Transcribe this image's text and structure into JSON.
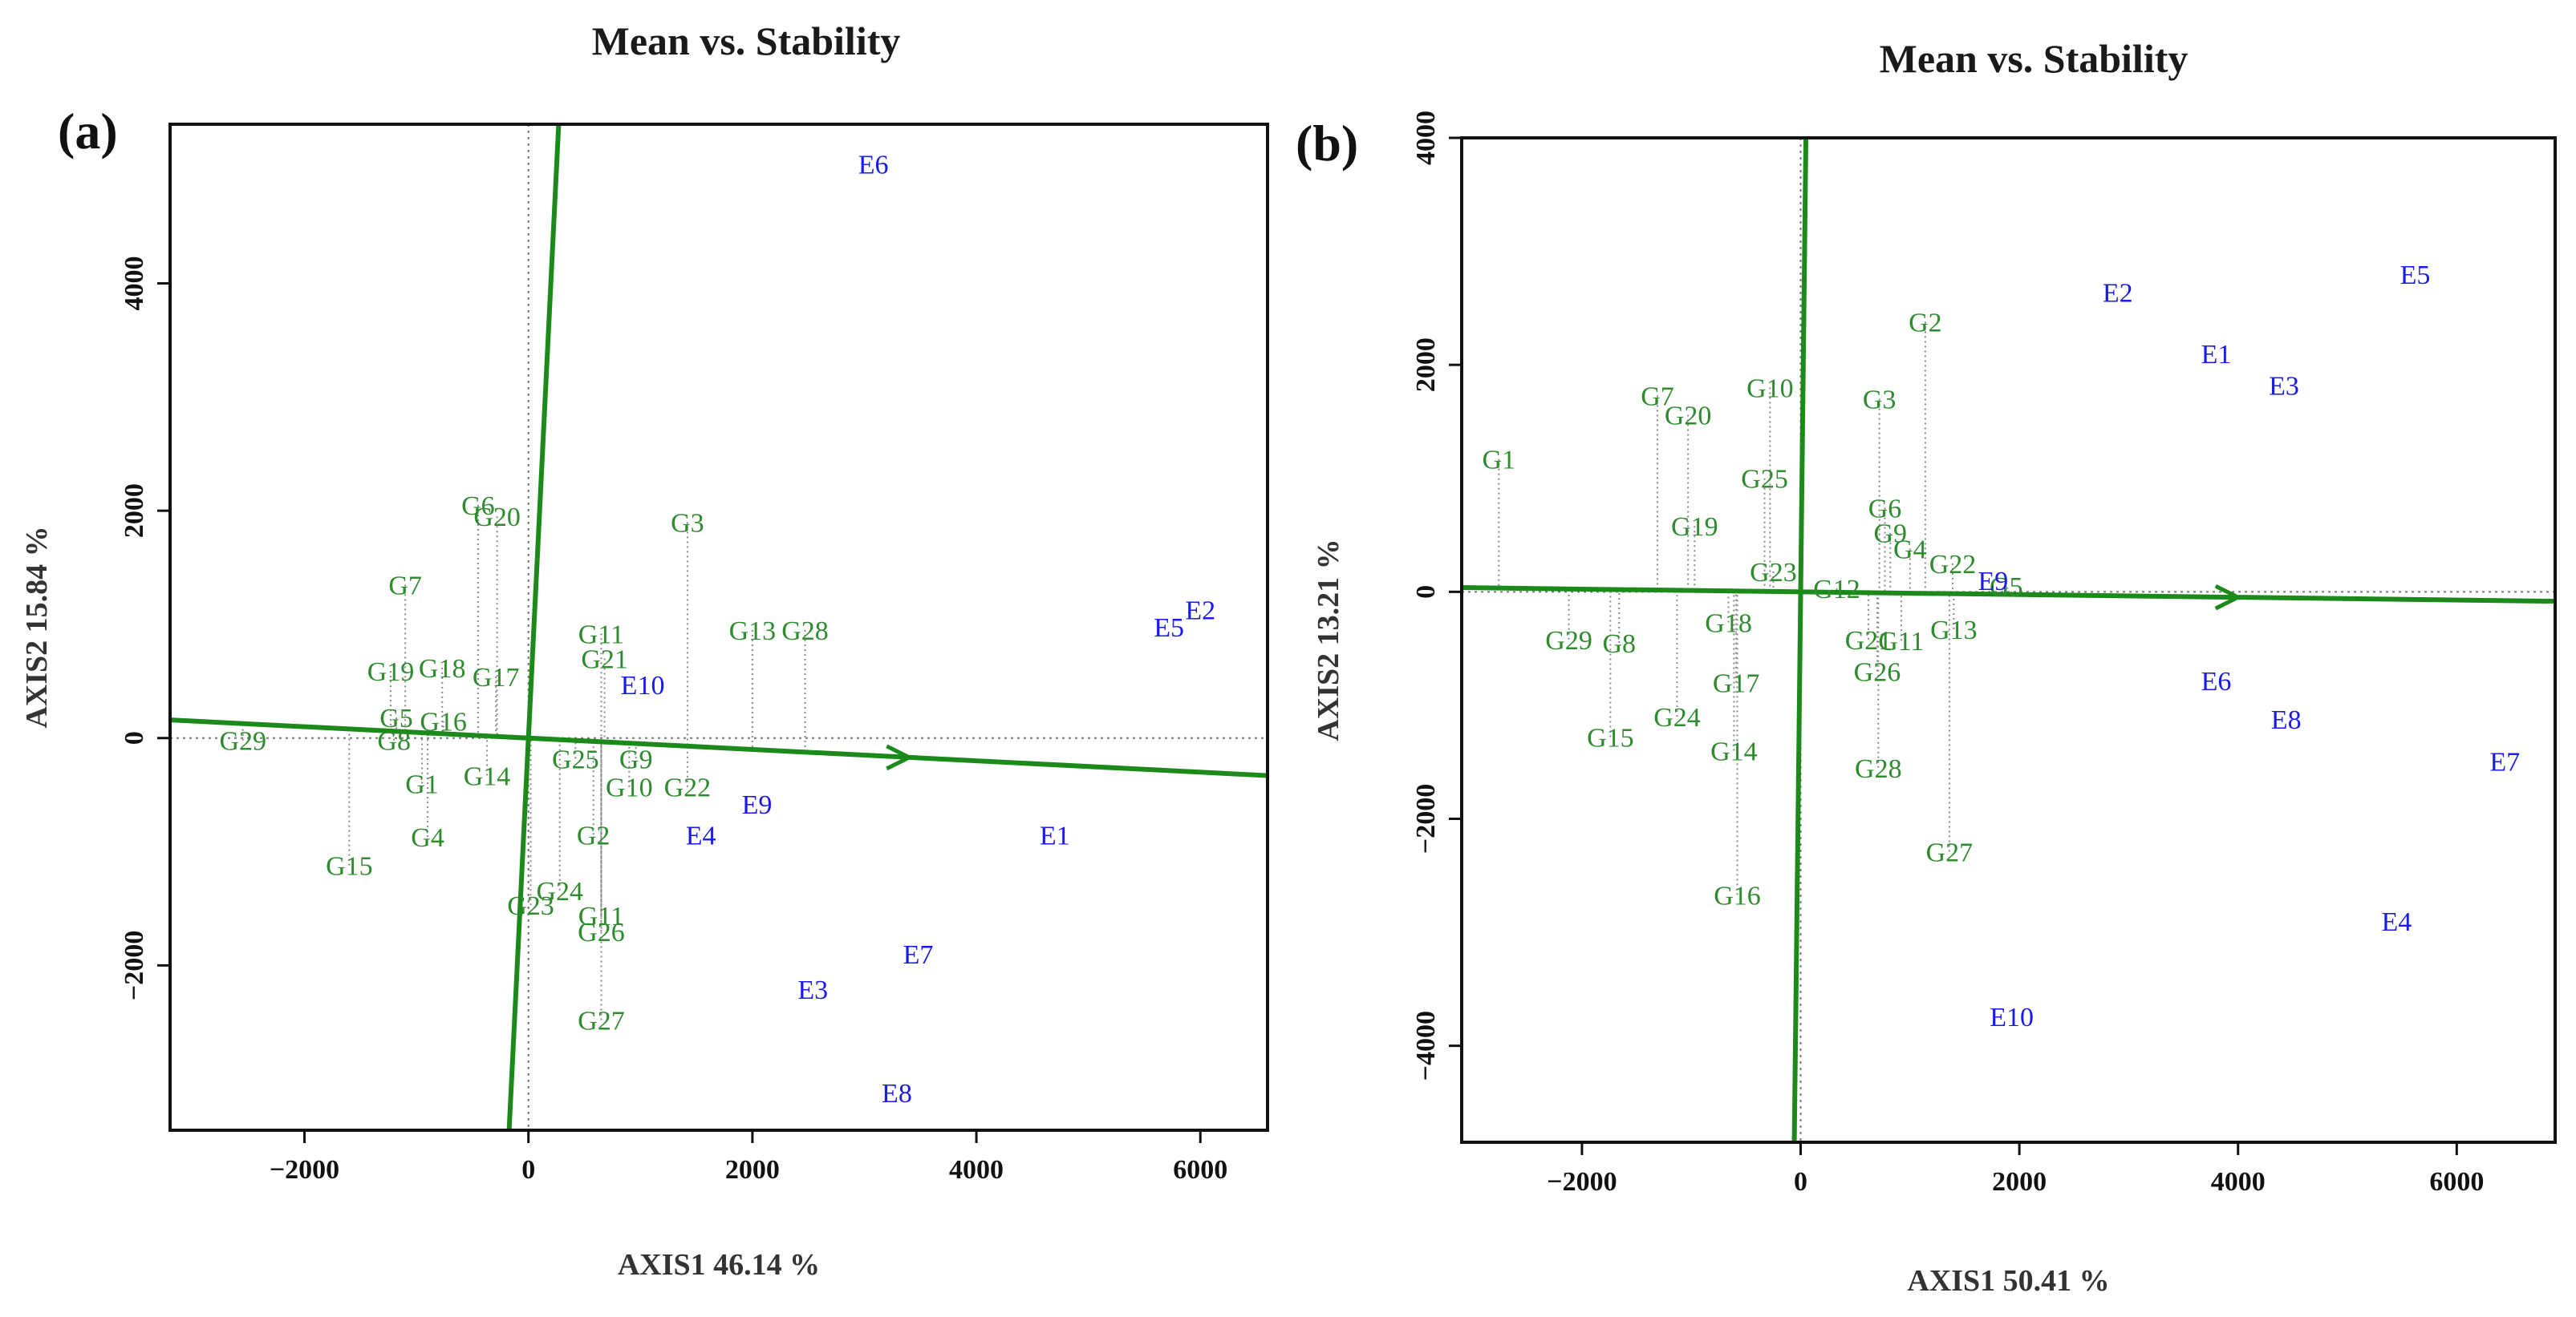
{
  "chart_data": [
    {
      "type": "scatter",
      "panel_label": "(a)",
      "title": "Mean vs. Stability",
      "xlabel": "AXIS1 46.14 %",
      "ylabel": "AXIS2 15.84 %",
      "xlim": [
        -3200,
        6600
      ],
      "ylim": [
        -3450,
        5400
      ],
      "xticks": [
        -2000,
        0,
        2000,
        4000,
        6000
      ],
      "yticks": [
        -2000,
        0,
        2000,
        4000
      ],
      "aec_axis_slope": -0.05,
      "aec_arrow_x": 3400,
      "genotype_color": "#2e8b2e",
      "environment_color": "#1a1aee",
      "genotypes": [
        {
          "label": "G1",
          "x": -950,
          "y": -400
        },
        {
          "label": "G2",
          "x": 580,
          "y": -850
        },
        {
          "label": "G3",
          "x": 1420,
          "y": 1900
        },
        {
          "label": "G4",
          "x": -900,
          "y": -870
        },
        {
          "label": "G5",
          "x": -1180,
          "y": 180
        },
        {
          "label": "G6",
          "x": -450,
          "y": 2050
        },
        {
          "label": "G7",
          "x": -1100,
          "y": 1350
        },
        {
          "label": "G8",
          "x": -1200,
          "y": -20
        },
        {
          "label": "G9",
          "x": 960,
          "y": -180
        },
        {
          "label": "G10",
          "x": 900,
          "y": -430
        },
        {
          "label": "G11",
          "x": 650,
          "y": 920
        },
        {
          "label": "G13",
          "x": 2000,
          "y": 950
        },
        {
          "label": "G14",
          "x": -370,
          "y": -330
        },
        {
          "label": "G15",
          "x": -1600,
          "y": -1120
        },
        {
          "label": "G16",
          "x": -760,
          "y": 150
        },
        {
          "label": "G17",
          "x": -290,
          "y": 540
        },
        {
          "label": "G18",
          "x": -770,
          "y": 620
        },
        {
          "label": "G19",
          "x": -1230,
          "y": 590
        },
        {
          "label": "G20",
          "x": -280,
          "y": 1950
        },
        {
          "label": "G21",
          "x": 680,
          "y": 700
        },
        {
          "label": "G22",
          "x": 1420,
          "y": -430
        },
        {
          "label": "G23",
          "x": 20,
          "y": -1470
        },
        {
          "label": "G24",
          "x": 280,
          "y": -1340
        },
        {
          "label": "G25",
          "x": 420,
          "y": -180
        },
        {
          "label": "G26",
          "x": 650,
          "y": -1700
        },
        {
          "label": "G27",
          "x": 650,
          "y": -2480
        },
        {
          "label": "G28",
          "x": 2470,
          "y": 950
        },
        {
          "label": "G29",
          "x": -2550,
          "y": -20
        },
        {
          "label": "G11",
          "x": 650,
          "y": -1560
        }
      ],
      "environments": [
        {
          "label": "E1",
          "x": 4700,
          "y": -850
        },
        {
          "label": "E2",
          "x": 6000,
          "y": 1130
        },
        {
          "label": "E3",
          "x": 2540,
          "y": -2210
        },
        {
          "label": "E4",
          "x": 1540,
          "y": -850
        },
        {
          "label": "E5",
          "x": 5720,
          "y": 980
        },
        {
          "label": "E6",
          "x": 3080,
          "y": 5050
        },
        {
          "label": "E7",
          "x": 3480,
          "y": -1900
        },
        {
          "label": "E8",
          "x": 3290,
          "y": -3120
        },
        {
          "label": "E9",
          "x": 2040,
          "y": -580
        },
        {
          "label": "E10",
          "x": 1020,
          "y": 470
        }
      ]
    },
    {
      "type": "scatter",
      "panel_label": "(b)",
      "title": "Mean vs. Stability",
      "xlabel": "AXIS1 50.41 %",
      "ylabel": "AXIS2 13.21 %",
      "xlim": [
        -3100,
        6900
      ],
      "ylim": [
        -4850,
        4000
      ],
      "xticks": [
        -2000,
        0,
        2000,
        4000,
        6000
      ],
      "yticks": [
        -4000,
        -2000,
        0,
        2000,
        4000
      ],
      "aec_axis_slope": -0.012,
      "aec_arrow_x": 4000,
      "genotype_color": "#2e8b2e",
      "environment_color": "#1a1aee",
      "genotypes": [
        {
          "label": "G1",
          "x": -2760,
          "y": 1170
        },
        {
          "label": "G2",
          "x": 1140,
          "y": 2380
        },
        {
          "label": "G3",
          "x": 720,
          "y": 1700
        },
        {
          "label": "G4",
          "x": 1000,
          "y": 380
        },
        {
          "label": "G5",
          "x": 1880,
          "y": 50
        },
        {
          "label": "G6",
          "x": 770,
          "y": 740
        },
        {
          "label": "G7",
          "x": -1310,
          "y": 1730
        },
        {
          "label": "G8",
          "x": -1660,
          "y": -450
        },
        {
          "label": "G9",
          "x": 820,
          "y": 520
        },
        {
          "label": "G10",
          "x": -280,
          "y": 1800
        },
        {
          "label": "G11",
          "x": 920,
          "y": -430
        },
        {
          "label": "G12",
          "x": 330,
          "y": 30
        },
        {
          "label": "G13",
          "x": 1400,
          "y": -330
        },
        {
          "label": "G14",
          "x": -610,
          "y": -1400
        },
        {
          "label": "G15",
          "x": -1740,
          "y": -1280
        },
        {
          "label": "G16",
          "x": -580,
          "y": -2670
        },
        {
          "label": "G17",
          "x": -590,
          "y": -800
        },
        {
          "label": "G18",
          "x": -660,
          "y": -270
        },
        {
          "label": "G19",
          "x": -970,
          "y": 580
        },
        {
          "label": "G20",
          "x": -1030,
          "y": 1560
        },
        {
          "label": "G21",
          "x": 620,
          "y": -420
        },
        {
          "label": "G22",
          "x": 1390,
          "y": 250
        },
        {
          "label": "G23",
          "x": -250,
          "y": 180
        },
        {
          "label": "G24",
          "x": -1130,
          "y": -1100
        },
        {
          "label": "G25",
          "x": -330,
          "y": 1000
        },
        {
          "label": "G26",
          "x": 700,
          "y": -700
        },
        {
          "label": "G27",
          "x": 1360,
          "y": -2290
        },
        {
          "label": "G28",
          "x": 710,
          "y": -1550
        },
        {
          "label": "G29",
          "x": -2120,
          "y": -420
        }
      ],
      "environments": [
        {
          "label": "E1",
          "x": 3800,
          "y": 2100
        },
        {
          "label": "E2",
          "x": 2900,
          "y": 2640
        },
        {
          "label": "E3",
          "x": 4420,
          "y": 1820
        },
        {
          "label": "E4",
          "x": 5450,
          "y": -2900
        },
        {
          "label": "E5",
          "x": 5620,
          "y": 2800
        },
        {
          "label": "E6",
          "x": 3800,
          "y": -780
        },
        {
          "label": "E7",
          "x": 6440,
          "y": -1490
        },
        {
          "label": "E8",
          "x": 4440,
          "y": -1120
        },
        {
          "label": "E9",
          "x": 1760,
          "y": 100
        },
        {
          "label": "E10",
          "x": 1930,
          "y": -3740
        }
      ]
    }
  ]
}
